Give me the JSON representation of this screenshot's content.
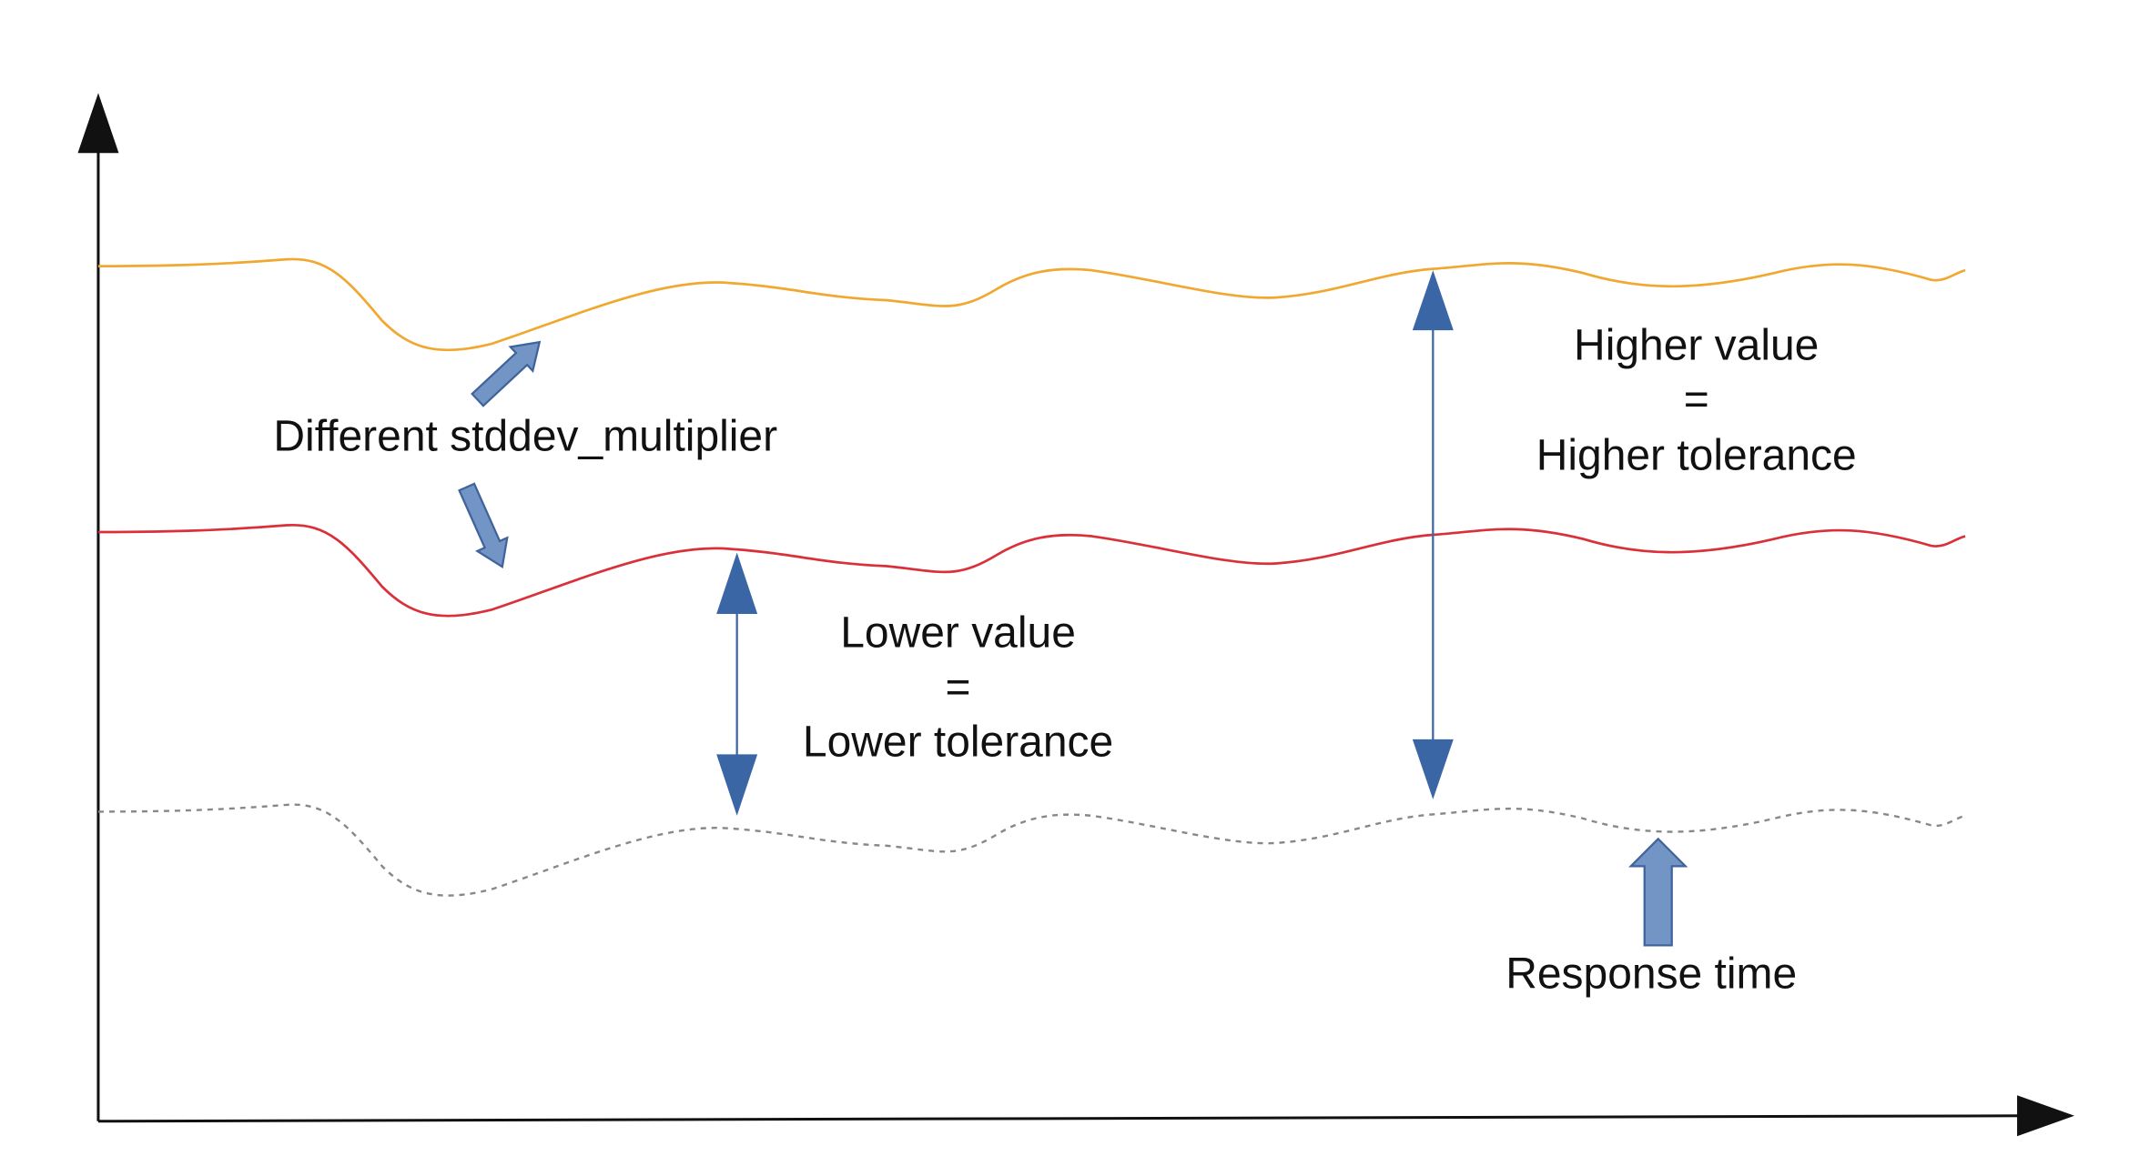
{
  "annotations": {
    "multiplier": "Different stddev_multiplier",
    "higher": {
      "lines": [
        "Higher value",
        "=",
        "Higher tolerance"
      ]
    },
    "lower": {
      "lines": [
        "Lower value",
        "=",
        "Lower tolerance"
      ]
    },
    "response": "Response time"
  }
}
